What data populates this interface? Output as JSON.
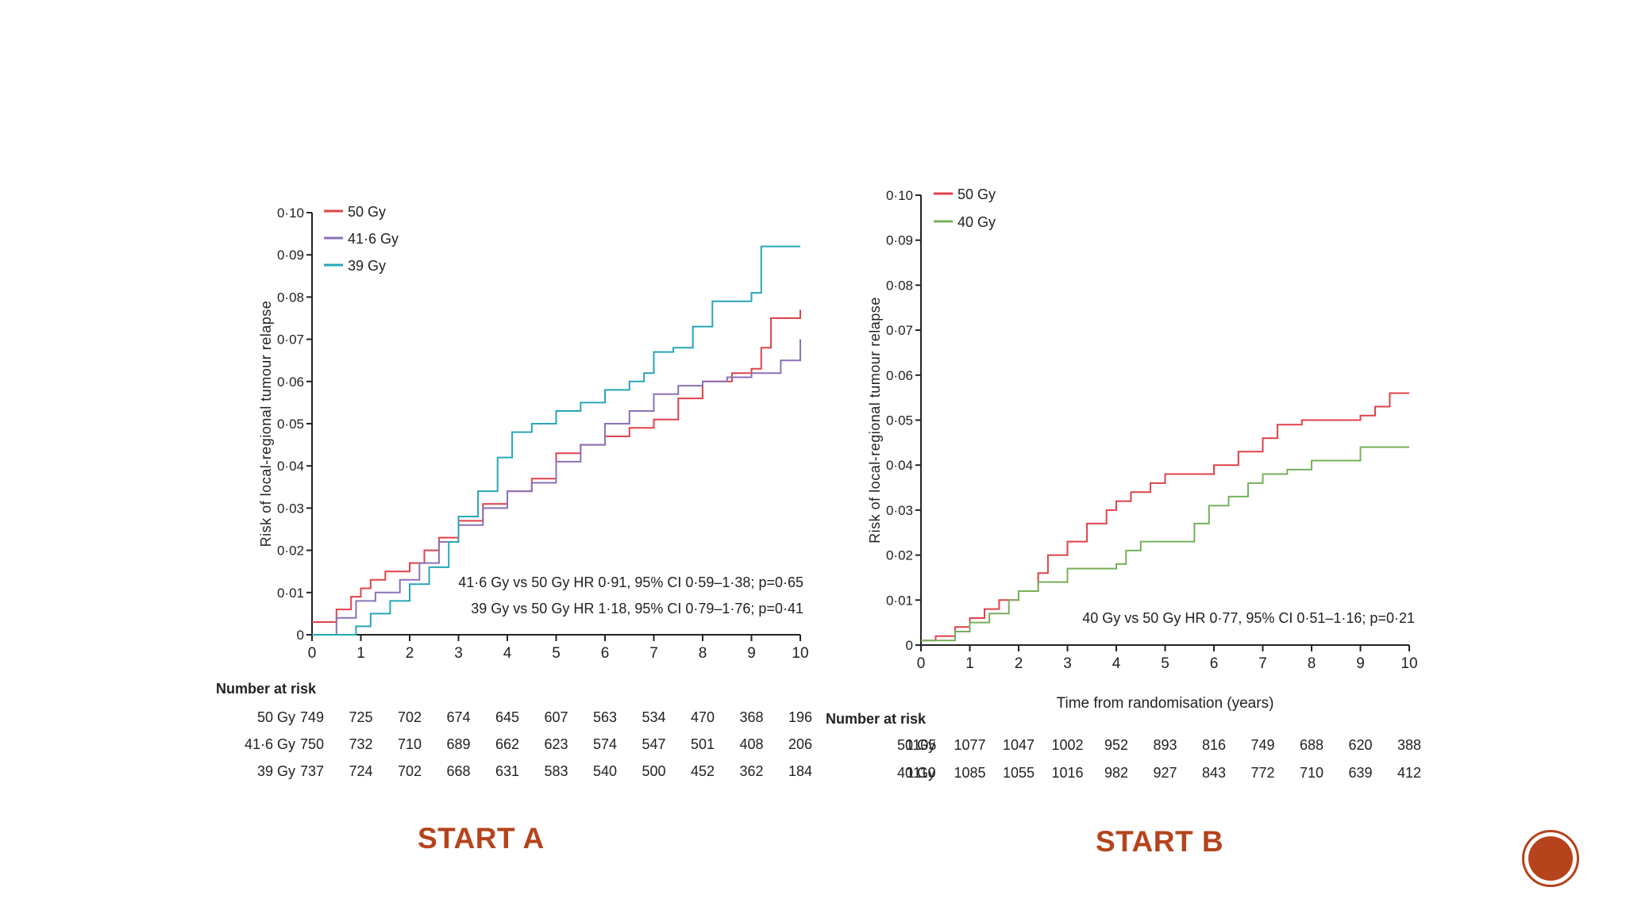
{
  "slide": {
    "caption_a": "START A",
    "caption_b": "START B",
    "nav_button_icon": "circle-button-icon",
    "accent_color": "#b5431c"
  },
  "chart_data": [
    {
      "type": "line",
      "step": true,
      "ylabel": "Risk of local-regional tumour relapse",
      "xlabel": "",
      "xlim": [
        0,
        10
      ],
      "ylim": [
        0,
        0.1
      ],
      "x_ticks": [
        "0",
        "1",
        "2",
        "3",
        "4",
        "5",
        "6",
        "7",
        "8",
        "9",
        "10"
      ],
      "y_ticks": [
        "0",
        "0·01",
        "0·02",
        "0·03",
        "0·04",
        "0·05",
        "0·06",
        "0·07",
        "0·08",
        "0·09",
        "0·10"
      ],
      "legend_position": "top-left",
      "series": [
        {
          "name": "50 Gy",
          "color": "#e0424a",
          "points": [
            [
              0,
              0.003
            ],
            [
              0.3,
              0.003
            ],
            [
              0.5,
              0.006
            ],
            [
              0.8,
              0.009
            ],
            [
              1,
              0.011
            ],
            [
              1.2,
              0.013
            ],
            [
              1.5,
              0.015
            ],
            [
              2,
              0.017
            ],
            [
              2.3,
              0.02
            ],
            [
              2.6,
              0.023
            ],
            [
              3,
              0.027
            ],
            [
              3.5,
              0.031
            ],
            [
              4,
              0.034
            ],
            [
              4.5,
              0.037
            ],
            [
              5,
              0.043
            ],
            [
              5.5,
              0.045
            ],
            [
              6,
              0.047
            ],
            [
              6.5,
              0.049
            ],
            [
              7,
              0.051
            ],
            [
              7.5,
              0.056
            ],
            [
              8,
              0.06
            ],
            [
              8.6,
              0.062
            ],
            [
              9,
              0.063
            ],
            [
              9.2,
              0.068
            ],
            [
              9.4,
              0.075
            ],
            [
              10,
              0.077
            ]
          ]
        },
        {
          "name": "41·6 Gy",
          "color": "#8a72b8",
          "points": [
            [
              0,
              0
            ],
            [
              0.3,
              0
            ],
            [
              0.5,
              0.004
            ],
            [
              0.9,
              0.008
            ],
            [
              1.3,
              0.01
            ],
            [
              1.8,
              0.013
            ],
            [
              2.2,
              0.017
            ],
            [
              2.6,
              0.022
            ],
            [
              3,
              0.026
            ],
            [
              3.5,
              0.03
            ],
            [
              4,
              0.034
            ],
            [
              4.5,
              0.036
            ],
            [
              5,
              0.041
            ],
            [
              5.5,
              0.045
            ],
            [
              6,
              0.05
            ],
            [
              6.5,
              0.053
            ],
            [
              7,
              0.057
            ],
            [
              7.5,
              0.059
            ],
            [
              8,
              0.06
            ],
            [
              8.5,
              0.061
            ],
            [
              9,
              0.062
            ],
            [
              9.6,
              0.065
            ],
            [
              10,
              0.07
            ]
          ]
        },
        {
          "name": "39 Gy",
          "color": "#28a6b6",
          "points": [
            [
              0,
              0
            ],
            [
              0.7,
              0
            ],
            [
              0.9,
              0.002
            ],
            [
              1.2,
              0.005
            ],
            [
              1.6,
              0.008
            ],
            [
              2,
              0.012
            ],
            [
              2.4,
              0.016
            ],
            [
              2.8,
              0.022
            ],
            [
              3,
              0.028
            ],
            [
              3.4,
              0.034
            ],
            [
              3.8,
              0.042
            ],
            [
              4.1,
              0.048
            ],
            [
              4.5,
              0.05
            ],
            [
              5,
              0.053
            ],
            [
              5.5,
              0.055
            ],
            [
              6,
              0.058
            ],
            [
              6.5,
              0.06
            ],
            [
              6.8,
              0.062
            ],
            [
              7,
              0.067
            ],
            [
              7.4,
              0.068
            ],
            [
              7.8,
              0.073
            ],
            [
              8.2,
              0.079
            ],
            [
              8.6,
              0.079
            ],
            [
              9,
              0.081
            ],
            [
              9.2,
              0.092
            ],
            [
              10,
              0.092
            ]
          ]
        }
      ],
      "annotations": [
        "41·6 Gy vs 50 Gy HR 0·91, 95% CI 0·59–1·38; p=0·65",
        "39 Gy vs 50 Gy HR 1·18, 95% CI 0·79–1·76; p=0·41"
      ],
      "risk_table": {
        "title": "Number at risk",
        "rows": [
          {
            "label": "50 Gy",
            "values": [
              749,
              725,
              702,
              674,
              645,
              607,
              563,
              534,
              470,
              368,
              196
            ]
          },
          {
            "label": "41·6 Gy",
            "values": [
              750,
              732,
              710,
              689,
              662,
              623,
              574,
              547,
              501,
              408,
              206
            ]
          },
          {
            "label": "39 Gy",
            "values": [
              737,
              724,
              702,
              668,
              631,
              583,
              540,
              500,
              452,
              362,
              184
            ]
          }
        ]
      }
    },
    {
      "type": "line",
      "step": true,
      "ylabel": "Risk of local-regional tumour relapse",
      "xlabel": "Time from randomisation (years)",
      "xlim": [
        0,
        10
      ],
      "ylim": [
        0,
        0.1
      ],
      "x_ticks": [
        "0",
        "1",
        "2",
        "3",
        "4",
        "5",
        "6",
        "7",
        "8",
        "9",
        "10"
      ],
      "y_ticks": [
        "0",
        "0·01",
        "0·02",
        "0·03",
        "0·04",
        "0·05",
        "0·06",
        "0·07",
        "0·08",
        "0·09",
        "0·10"
      ],
      "legend_position": "top-left",
      "series": [
        {
          "name": "50 Gy",
          "color": "#e0424a",
          "points": [
            [
              0,
              0.001
            ],
            [
              0.3,
              0.002
            ],
            [
              0.7,
              0.004
            ],
            [
              1,
              0.006
            ],
            [
              1.3,
              0.008
            ],
            [
              1.6,
              0.01
            ],
            [
              2,
              0.012
            ],
            [
              2.4,
              0.016
            ],
            [
              2.6,
              0.02
            ],
            [
              3,
              0.023
            ],
            [
              3.4,
              0.027
            ],
            [
              3.8,
              0.03
            ],
            [
              4,
              0.032
            ],
            [
              4.3,
              0.034
            ],
            [
              4.7,
              0.036
            ],
            [
              5,
              0.038
            ],
            [
              5.5,
              0.038
            ],
            [
              6,
              0.04
            ],
            [
              6.5,
              0.043
            ],
            [
              7,
              0.046
            ],
            [
              7.3,
              0.049
            ],
            [
              7.8,
              0.05
            ],
            [
              8.5,
              0.05
            ],
            [
              9,
              0.051
            ],
            [
              9.3,
              0.053
            ],
            [
              9.6,
              0.056
            ],
            [
              10,
              0.056
            ]
          ]
        },
        {
          "name": "40 Gy",
          "color": "#76b05a",
          "points": [
            [
              0,
              0.001
            ],
            [
              0.3,
              0.001
            ],
            [
              0.7,
              0.003
            ],
            [
              1,
              0.005
            ],
            [
              1.4,
              0.007
            ],
            [
              1.8,
              0.01
            ],
            [
              2,
              0.012
            ],
            [
              2.4,
              0.014
            ],
            [
              3,
              0.017
            ],
            [
              3.6,
              0.017
            ],
            [
              4,
              0.018
            ],
            [
              4.2,
              0.021
            ],
            [
              4.5,
              0.023
            ],
            [
              5,
              0.023
            ],
            [
              5.3,
              0.023
            ],
            [
              5.6,
              0.027
            ],
            [
              5.9,
              0.031
            ],
            [
              6.3,
              0.033
            ],
            [
              6.7,
              0.036
            ],
            [
              7,
              0.038
            ],
            [
              7.5,
              0.039
            ],
            [
              8,
              0.041
            ],
            [
              8.5,
              0.041
            ],
            [
              9,
              0.044
            ],
            [
              10,
              0.044
            ]
          ]
        }
      ],
      "annotations": [
        "40 Gy vs 50 Gy HR 0·77, 95% CI 0·51–1·16; p=0·21"
      ],
      "risk_table": {
        "title": "Number at risk",
        "rows": [
          {
            "label": "50 Gy",
            "values": [
              1105,
              1077,
              1047,
              1002,
              952,
              893,
              816,
              749,
              688,
              620,
              388
            ]
          },
          {
            "label": "40 Gy",
            "values": [
              1110,
              1085,
              1055,
              1016,
              982,
              927,
              843,
              772,
              710,
              639,
              412
            ]
          }
        ]
      }
    }
  ]
}
